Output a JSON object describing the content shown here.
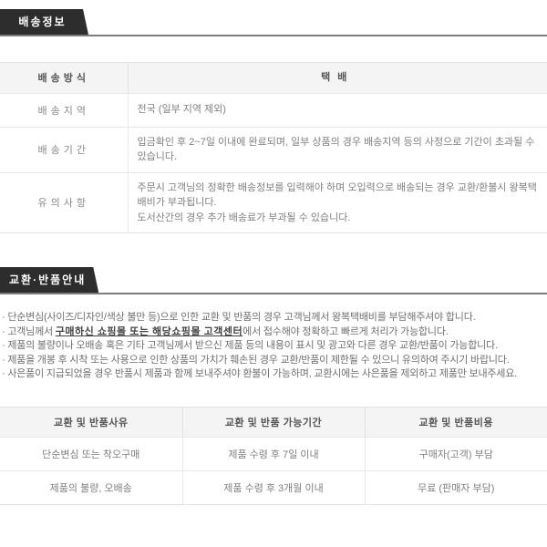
{
  "colors": {
    "tab_bg": "#2d2d2d",
    "tab_text": "#ffffff",
    "tab_underline": "#7d7d7d",
    "table_header_bg": "#f4f4f4",
    "table_border": "#e2e2e2",
    "body_text": "#777777"
  },
  "shipping_section": {
    "tab_label": "배송정보",
    "table": {
      "method_label": "배송방식",
      "method_value": "택배",
      "area_label": "배송지역",
      "area_value": "전국 (일부 지역 제외)",
      "period_label": "배송기간",
      "period_value": "입금확인 후 2~7일 이내에 완료되며, 일부 상품의 경우 배송지역 등의 사정으로 기간이 초과될 수 있습니다.",
      "caution_label": "유의사항",
      "caution_value": "주문시 고객님의 정확한 배송정보를 입력해야 하며 오입력으로 배송되는 경우 교환/환불시 왕복택배비가 부과됩니다.\n도서산간의 경우 추가 배송료가 부과될 수 있습니다."
    }
  },
  "exchange_section": {
    "tab_label": "교환·반품안내",
    "notes": [
      {
        "text": "· 단순변심(사이즈/디자인/색상 불만 등)으로 인한 교환 및 반품의 경우 고객님께서 왕복택배비를 부담해주셔야 합니다."
      },
      {
        "prefix": "· 고객님께서 ",
        "bold": "구매하신 쇼핑몰 또는 해당쇼핑몰 고객센터",
        "suffix": "에서 접수해야 정확하고 빠르게 처리가 가능합니다."
      },
      {
        "text": "· 제품의 불량이나 오배송 혹은 기타 고객님께서 받으신 제품 등의 내용이 표시 및 광고와 다른 경우 교환/반품이 가능합니다."
      },
      {
        "text": "· 제품을 개봉 후 시착 또는 사용으로 인한 상품의 가치가 훼손된 경우 교환/반품이 제한될 수 있으니 유의하여 주시기 바랍니다."
      },
      {
        "text": "· 사은품이 지급되었을 경우 반품시 제품과 함께 보내주셔야 환불이 가능하며, 교환시에는 사은품을 제외하고 제품만 보내주세요."
      }
    ],
    "table": {
      "headers": [
        "교환 및 반품사유",
        "교환 및 반품 가능기간",
        "교환 및 반품비용"
      ],
      "rows": [
        [
          "단순변심 또는 착오구매",
          "제품 수령 후 7일 이내",
          "구매자(고객) 부담"
        ],
        [
          "제품의 불량, 오배송",
          "제품 수령 후 3개월 이내",
          "무료 (판매자 부담)"
        ]
      ]
    }
  }
}
